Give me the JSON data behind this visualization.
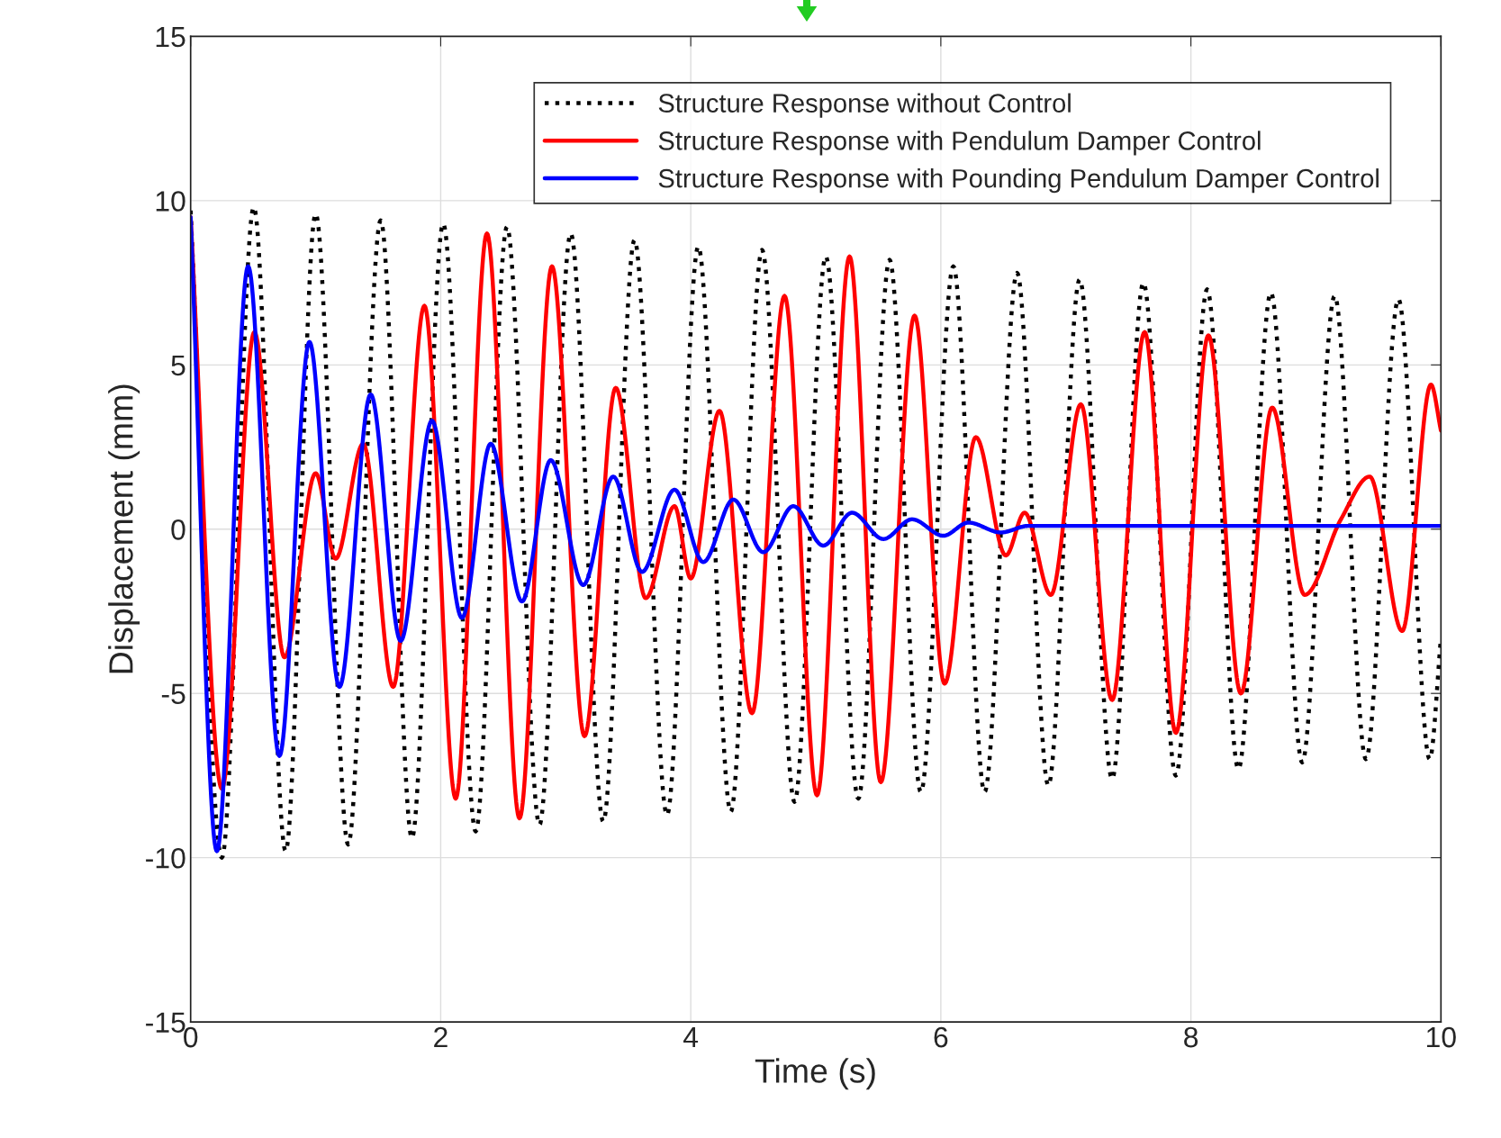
{
  "chart_data": {
    "type": "line",
    "xlabel": "Time (s)",
    "ylabel": "Displacement (mm)",
    "xlim": [
      0,
      10
    ],
    "ylim": [
      -15,
      15
    ],
    "xticks": [
      0,
      2,
      4,
      6,
      8,
      10
    ],
    "yticks": [
      -15,
      -10,
      -5,
      0,
      5,
      10,
      15
    ],
    "grid": true,
    "legend": "top right",
    "series": [
      {
        "name": "Structure Response without Control",
        "color": "#000000",
        "line_style": "dotted",
        "x": [
          0,
          0.25,
          0.505,
          0.76,
          1.0,
          1.26,
          1.52,
          1.77,
          2.02,
          2.28,
          2.53,
          2.79,
          3.04,
          3.3,
          3.55,
          3.81,
          4.06,
          4.32,
          4.57,
          4.83,
          5.08,
          5.34,
          5.59,
          5.84,
          6.1,
          6.35,
          6.61,
          6.86,
          7.11,
          7.37,
          7.62,
          7.88,
          8.13,
          8.38,
          8.64,
          8.89,
          9.15,
          9.4,
          9.66,
          9.91,
          10.0
        ],
        "values": [
          9.7,
          -10.0,
          9.8,
          -9.8,
          9.6,
          -9.6,
          9.4,
          -9.4,
          9.3,
          -9.2,
          9.2,
          -9.0,
          9.0,
          -8.9,
          8.8,
          -8.7,
          8.6,
          -8.6,
          8.5,
          -8.3,
          8.3,
          -8.2,
          8.2,
          -8.0,
          8.0,
          -8.0,
          7.8,
          -7.8,
          7.6,
          -7.6,
          7.5,
          -7.5,
          7.3,
          -7.3,
          7.2,
          -7.1,
          7.1,
          -7.0,
          7.0,
          -7.0,
          -3.3
        ]
      },
      {
        "name": "Structure Response with Pendulum Damper Control",
        "color": "#ff0000",
        "line_style": "solid",
        "x": [
          0,
          0.25,
          0.51,
          0.75,
          1.0,
          1.16,
          1.38,
          1.62,
          1.87,
          2.12,
          2.37,
          2.63,
          2.89,
          3.15,
          3.4,
          3.64,
          3.87,
          4.0,
          4.23,
          4.49,
          4.75,
          5.01,
          5.27,
          5.52,
          5.79,
          6.03,
          6.28,
          6.52,
          6.67,
          6.88,
          7.12,
          7.37,
          7.63,
          7.88,
          8.14,
          8.4,
          8.65,
          8.91,
          9.2,
          9.43,
          9.69,
          9.92,
          10.0
        ],
        "values": [
          9.5,
          -7.9,
          6.0,
          -3.9,
          1.7,
          -0.9,
          2.6,
          -4.8,
          6.8,
          -8.2,
          9.0,
          -8.8,
          8.0,
          -6.3,
          4.3,
          -2.1,
          0.7,
          -1.5,
          3.6,
          -5.6,
          7.1,
          -8.1,
          8.3,
          -7.7,
          6.5,
          -4.7,
          2.8,
          -0.8,
          0.5,
          -2.0,
          3.8,
          -5.2,
          6.0,
          -6.2,
          5.9,
          -5.0,
          3.7,
          -2.0,
          0.3,
          1.6,
          -3.1,
          4.4,
          3.0
        ]
      },
      {
        "name": "Structure Response with Pounding Pendulum Damper Control",
        "color": "#0000ff",
        "line_style": "solid",
        "x": [
          0,
          0.21,
          0.46,
          0.71,
          0.95,
          1.19,
          1.44,
          1.68,
          1.93,
          2.17,
          2.4,
          2.65,
          2.88,
          3.14,
          3.38,
          3.61,
          3.87,
          4.1,
          4.34,
          4.58,
          4.82,
          5.06,
          5.29,
          5.54,
          5.77,
          6.02,
          6.22,
          6.48,
          6.7,
          7.2,
          7.7,
          8.2,
          8.7,
          9.2,
          10.0
        ],
        "values": [
          9.5,
          -9.8,
          8.0,
          -6.9,
          5.7,
          -4.8,
          4.1,
          -3.4,
          3.3,
          -2.7,
          2.6,
          -2.2,
          2.1,
          -1.7,
          1.6,
          -1.3,
          1.2,
          -1.0,
          0.9,
          -0.7,
          0.7,
          -0.5,
          0.5,
          -0.3,
          0.3,
          -0.2,
          0.2,
          -0.1,
          0.1,
          0.1,
          0.1,
          0.1,
          0.1,
          0.1,
          0.1
        ]
      }
    ]
  }
}
